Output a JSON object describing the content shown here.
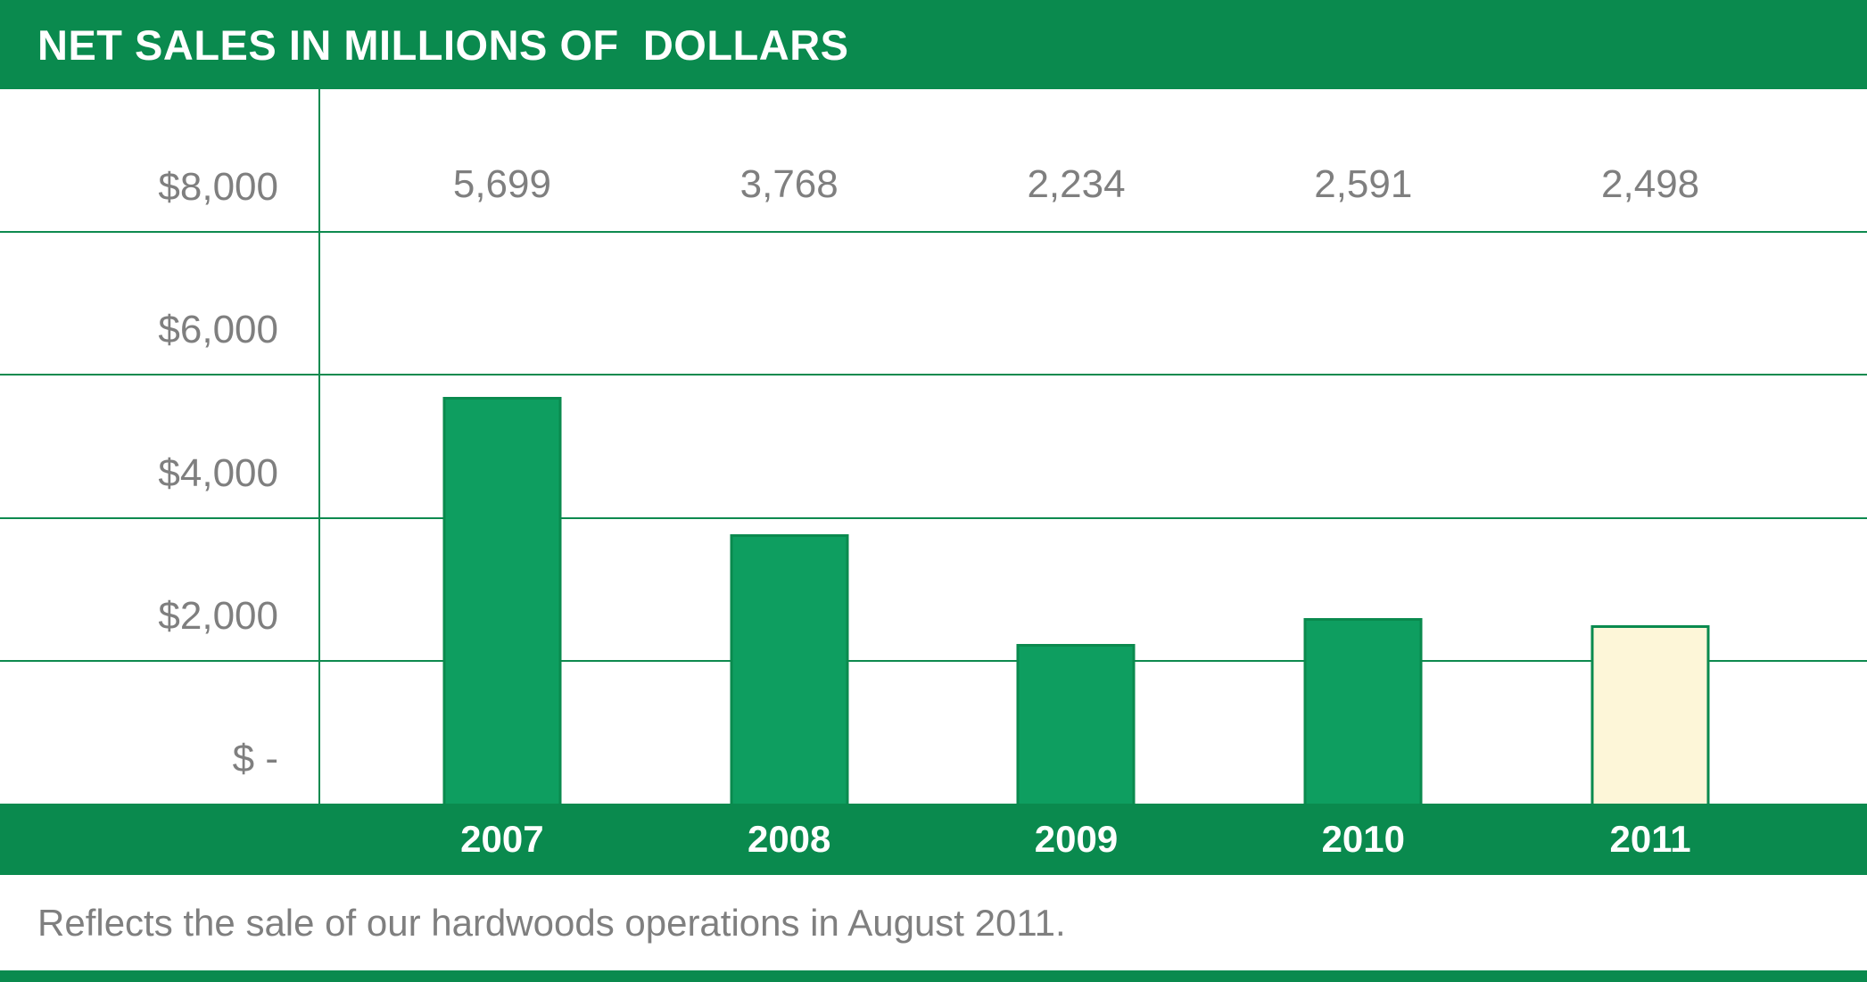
{
  "header": {
    "title": "NET SALES IN MILLIONS OF  DOLLARS"
  },
  "chart_data": {
    "type": "bar",
    "title": "NET SALES IN MILLIONS OF DOLLARS",
    "categories": [
      "2007",
      "2008",
      "2009",
      "2010",
      "2011"
    ],
    "values": [
      5699,
      3768,
      2234,
      2591,
      2498
    ],
    "data_labels": [
      "5,699",
      "3,768",
      "2,234",
      "2,591",
      "2,498"
    ],
    "y_tick_labels": [
      "$8,000",
      "$6,000",
      "$4,000",
      "$2,000",
      "$ -"
    ],
    "y_tick_values": [
      8000,
      6000,
      4000,
      2000,
      0
    ],
    "ylim": [
      0,
      10000
    ],
    "gridlines": true,
    "legend": "none",
    "xlabel": "",
    "ylabel": "",
    "highlighted_index": 4
  },
  "footer": {
    "note": "Reflects the sale of our hardwoods operations in August 2011."
  },
  "colors": {
    "header_green": "#0a8a4e",
    "bar_green": "#0e9e60",
    "bar_border_green": "#0a8a4e",
    "highlight_fill": "#fdf6d8",
    "gridline_green": "#0e8a4f",
    "label_gray": "#7f7f7f",
    "axis_text_white": "#ffffff"
  }
}
